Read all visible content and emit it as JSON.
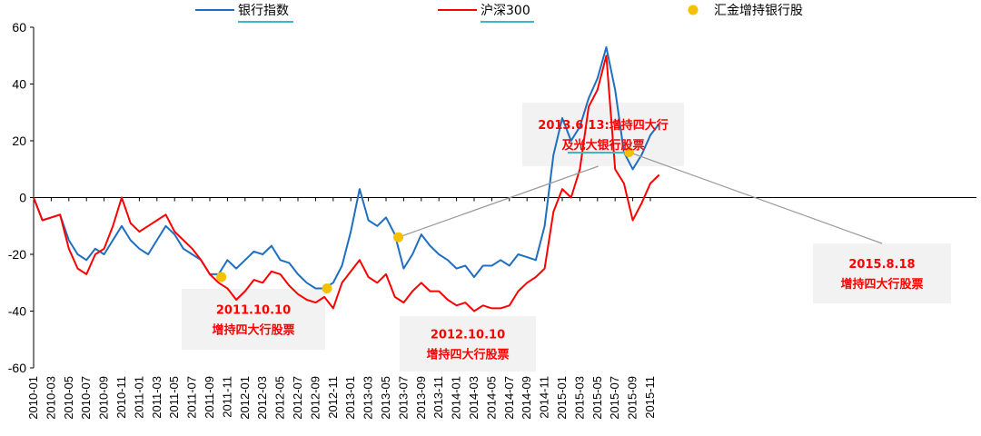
{
  "chart_data": {
    "type": "line",
    "title": "",
    "xlabel": "",
    "ylabel": "",
    "ylim": [
      -60,
      60
    ],
    "yticks": [
      -60,
      -40,
      -20,
      0,
      20,
      40,
      60
    ],
    "x_tick_labels": [
      "2010-01",
      "2010-03",
      "2010-05",
      "2010-07",
      "2010-09",
      "2010-11",
      "2011-01",
      "2011-03",
      "2011-05",
      "2011-07",
      "2011-09",
      "2011-11",
      "2012-01",
      "2012-03",
      "2012-05",
      "2012-07",
      "2012-09",
      "2012-11",
      "2013-01",
      "2013-03",
      "2013-05",
      "2013-07",
      "2013-09",
      "2013-11",
      "2014-01",
      "2014-03",
      "2014-05",
      "2014-07",
      "2014-09",
      "2014-11",
      "2015-01",
      "2015-03",
      "2015-05",
      "2015-07",
      "2015-09",
      "2015-11"
    ],
    "grid": false,
    "legend_position": "top",
    "series": [
      {
        "name": "银行指数",
        "color": "#1f6fc0",
        "points": [
          [
            "2010-01",
            0
          ],
          [
            "2010-02",
            -8
          ],
          [
            "2010-03",
            -7
          ],
          [
            "2010-04",
            -6
          ],
          [
            "2010-05",
            -15
          ],
          [
            "2010-06",
            -20
          ],
          [
            "2010-07",
            -22
          ],
          [
            "2010-08",
            -18
          ],
          [
            "2010-09",
            -20
          ],
          [
            "2010-10",
            -15
          ],
          [
            "2010-11",
            -10
          ],
          [
            "2010-12",
            -15
          ],
          [
            "2011-01",
            -18
          ],
          [
            "2011-02",
            -20
          ],
          [
            "2011-03",
            -15
          ],
          [
            "2011-04",
            -10
          ],
          [
            "2011-05",
            -13
          ],
          [
            "2011-06",
            -18
          ],
          [
            "2011-07",
            -20
          ],
          [
            "2011-08",
            -22
          ],
          [
            "2011-09",
            -27
          ],
          [
            "2011-10",
            -27
          ],
          [
            "2011-11",
            -22
          ],
          [
            "2011-12",
            -25
          ],
          [
            "2012-01",
            -22
          ],
          [
            "2012-02",
            -19
          ],
          [
            "2012-03",
            -20
          ],
          [
            "2012-04",
            -17
          ],
          [
            "2012-05",
            -22
          ],
          [
            "2012-06",
            -23
          ],
          [
            "2012-07",
            -27
          ],
          [
            "2012-08",
            -30
          ],
          [
            "2012-09",
            -32
          ],
          [
            "2012-10",
            -32
          ],
          [
            "2012-11",
            -30
          ],
          [
            "2012-12",
            -24
          ],
          [
            "2013-01",
            -12
          ],
          [
            "2013-02",
            3
          ],
          [
            "2013-03",
            -8
          ],
          [
            "2013-04",
            -10
          ],
          [
            "2013-05",
            -7
          ],
          [
            "2013-06",
            -13
          ],
          [
            "2013-07",
            -25
          ],
          [
            "2013-08",
            -20
          ],
          [
            "2013-09",
            -13
          ],
          [
            "2013-10",
            -17
          ],
          [
            "2013-11",
            -20
          ],
          [
            "2013-12",
            -22
          ],
          [
            "2014-01",
            -25
          ],
          [
            "2014-02",
            -24
          ],
          [
            "2014-03",
            -28
          ],
          [
            "2014-04",
            -24
          ],
          [
            "2014-05",
            -24
          ],
          [
            "2014-06",
            -22
          ],
          [
            "2014-07",
            -24
          ],
          [
            "2014-08",
            -20
          ],
          [
            "2014-09",
            -21
          ],
          [
            "2014-10",
            -22
          ],
          [
            "2014-11",
            -10
          ],
          [
            "2014-12",
            15
          ],
          [
            "2015-01",
            28
          ],
          [
            "2015-02",
            20
          ],
          [
            "2015-03",
            25
          ],
          [
            "2015-04",
            35
          ],
          [
            "2015-05",
            42
          ],
          [
            "2015-06",
            53
          ],
          [
            "2015-07",
            38
          ],
          [
            "2015-08",
            16
          ],
          [
            "2015-09",
            10
          ],
          [
            "2015-10",
            15
          ],
          [
            "2015-11",
            22
          ],
          [
            "2015-12",
            26
          ]
        ]
      },
      {
        "name": "沪深300",
        "color": "#ff0000",
        "points": [
          [
            "2010-01",
            0
          ],
          [
            "2010-02",
            -8
          ],
          [
            "2010-03",
            -7
          ],
          [
            "2010-04",
            -6
          ],
          [
            "2010-05",
            -18
          ],
          [
            "2010-06",
            -25
          ],
          [
            "2010-07",
            -27
          ],
          [
            "2010-08",
            -20
          ],
          [
            "2010-09",
            -18
          ],
          [
            "2010-10",
            -10
          ],
          [
            "2010-11",
            0
          ],
          [
            "2010-12",
            -9
          ],
          [
            "2011-01",
            -12
          ],
          [
            "2011-02",
            -10
          ],
          [
            "2011-03",
            -8
          ],
          [
            "2011-04",
            -6
          ],
          [
            "2011-05",
            -12
          ],
          [
            "2011-06",
            -15
          ],
          [
            "2011-07",
            -18
          ],
          [
            "2011-08",
            -22
          ],
          [
            "2011-09",
            -27
          ],
          [
            "2011-10",
            -30
          ],
          [
            "2011-11",
            -32
          ],
          [
            "2011-12",
            -36
          ],
          [
            "2012-01",
            -33
          ],
          [
            "2012-02",
            -29
          ],
          [
            "2012-03",
            -30
          ],
          [
            "2012-04",
            -26
          ],
          [
            "2012-05",
            -27
          ],
          [
            "2012-06",
            -31
          ],
          [
            "2012-07",
            -34
          ],
          [
            "2012-08",
            -36
          ],
          [
            "2012-09",
            -37
          ],
          [
            "2012-10",
            -35
          ],
          [
            "2012-11",
            -39
          ],
          [
            "2012-12",
            -30
          ],
          [
            "2013-01",
            -26
          ],
          [
            "2013-02",
            -22
          ],
          [
            "2013-03",
            -28
          ],
          [
            "2013-04",
            -30
          ],
          [
            "2013-05",
            -27
          ],
          [
            "2013-06",
            -35
          ],
          [
            "2013-07",
            -37
          ],
          [
            "2013-08",
            -33
          ],
          [
            "2013-09",
            -30
          ],
          [
            "2013-10",
            -33
          ],
          [
            "2013-11",
            -33
          ],
          [
            "2013-12",
            -36
          ],
          [
            "2014-01",
            -38
          ],
          [
            "2014-02",
            -37
          ],
          [
            "2014-03",
            -40
          ],
          [
            "2014-04",
            -38
          ],
          [
            "2014-05",
            -39
          ],
          [
            "2014-06",
            -39
          ],
          [
            "2014-07",
            -38
          ],
          [
            "2014-08",
            -33
          ],
          [
            "2014-09",
            -30
          ],
          [
            "2014-10",
            -28
          ],
          [
            "2014-11",
            -25
          ],
          [
            "2014-12",
            -5
          ],
          [
            "2015-01",
            3
          ],
          [
            "2015-02",
            0
          ],
          [
            "2015-03",
            10
          ],
          [
            "2015-04",
            32
          ],
          [
            "2015-05",
            38
          ],
          [
            "2015-06",
            50
          ],
          [
            "2015-07",
            10
          ],
          [
            "2015-08",
            5
          ],
          [
            "2015-09",
            -8
          ],
          [
            "2015-10",
            -2
          ],
          [
            "2015-11",
            5
          ],
          [
            "2015-12",
            8
          ]
        ]
      }
    ],
    "markers": {
      "name": "汇金增持银行股",
      "color": "#f5c000",
      "points": [
        [
          "2011-10-10",
          -28
        ],
        [
          "2012-10-10",
          -32
        ],
        [
          "2013-06-13",
          -14
        ],
        [
          "2015-08-18",
          16
        ]
      ]
    },
    "annotations": [
      {
        "id": "ann-2011",
        "lines": [
          "2011.10.10",
          "增持四大行股票"
        ],
        "marker_index": 0,
        "has_leader": false
      },
      {
        "id": "ann-2012",
        "lines": [
          "2012.10.10",
          "增持四大行股票"
        ],
        "marker_index": 1,
        "has_leader": false
      },
      {
        "id": "ann-2013",
        "lines": [
          "2013.6.13:增持四大行",
          "及光大银行股票"
        ],
        "marker_index": 2,
        "has_leader": true
      },
      {
        "id": "ann-2015",
        "lines": [
          "2015.8.18",
          "增持四大行股票"
        ],
        "marker_index": 3,
        "has_leader": true
      }
    ]
  }
}
